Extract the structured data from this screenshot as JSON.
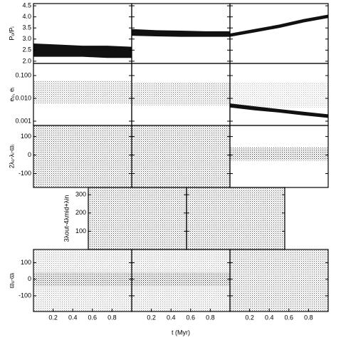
{
  "chart_data": [
    {
      "type": "band",
      "ylabel": "Pₒ/Pᵢ",
      "xlim": [
        0,
        1
      ],
      "ylim": [
        1.9,
        4.6
      ],
      "yticks": [
        {
          "value": 2,
          "label": "2.0"
        },
        2.5,
        {
          "value": 3,
          "label": "3.0"
        },
        3.5,
        {
          "value": 4,
          "label": "4.0"
        },
        4.5
      ],
      "show_ytick_labels": true,
      "series": [
        {
          "color": "#111",
          "style": "solid",
          "x": [
            0,
            0.25,
            0.5,
            0.75,
            1
          ],
          "lower": [
            2.2,
            2.2,
            2.2,
            2.15,
            2.15
          ],
          "upper": [
            2.8,
            2.75,
            2.7,
            2.7,
            2.65
          ]
        }
      ]
    },
    {
      "type": "band",
      "xlim": [
        0,
        1
      ],
      "ylim": [
        1.9,
        4.6
      ],
      "yticks": [
        {
          "value": 2,
          "label": "2.0"
        },
        2.5,
        {
          "value": 3,
          "label": "3.0"
        },
        3.5,
        {
          "value": 4,
          "label": "4.0"
        },
        4.5
      ],
      "show_ytick_labels": false,
      "series": [
        {
          "color": "#111",
          "style": "solid",
          "x": [
            0,
            0.25,
            0.5,
            0.75,
            1
          ],
          "lower": [
            3.15,
            3.12,
            3.1,
            3.1,
            3.1
          ],
          "upper": [
            3.45,
            3.4,
            3.38,
            3.35,
            3.35
          ]
        }
      ]
    },
    {
      "type": "band",
      "xlim": [
        0,
        1
      ],
      "ylim": [
        1.9,
        4.6
      ],
      "yticks": [
        {
          "value": 2,
          "label": "2.0"
        },
        2.5,
        {
          "value": 3,
          "label": "3.0"
        },
        3.5,
        {
          "value": 4,
          "label": "4.0"
        },
        4.5
      ],
      "show_ytick_labels": false,
      "series": [
        {
          "color": "#111",
          "style": "solid",
          "x": [
            0,
            0.25,
            0.5,
            0.75,
            1
          ],
          "lower": [
            3.1,
            3.3,
            3.5,
            3.75,
            3.95
          ],
          "upper": [
            3.25,
            3.45,
            3.65,
            3.9,
            4.1
          ]
        }
      ]
    },
    {
      "type": "band",
      "ylabel": "eₒ, eᵢ",
      "yscale": "log",
      "xlim": [
        0,
        1
      ],
      "ylim": [
        0.00065,
        0.34
      ],
      "yticks": [
        0.001,
        {
          "value": 0.01,
          "label": "0.010"
        },
        {
          "value": 0.1,
          "label": "0.100"
        }
      ],
      "show_ytick_labels": true,
      "series": [
        {
          "color": "#777",
          "style": "dots",
          "x": [
            0,
            0.25,
            0.5,
            0.75,
            1
          ],
          "lower": [
            0.006,
            0.006,
            0.006,
            0.006,
            0.006
          ],
          "upper": [
            0.06,
            0.06,
            0.06,
            0.06,
            0.06
          ]
        }
      ]
    },
    {
      "type": "band",
      "yscale": "log",
      "xlim": [
        0,
        1
      ],
      "ylim": [
        0.00065,
        0.34
      ],
      "yticks": [
        0.001,
        {
          "value": 0.01,
          "label": "0.010"
        },
        {
          "value": 0.1,
          "label": "0.100"
        }
      ],
      "show_ytick_labels": false,
      "series": [
        {
          "color": "#777",
          "style": "dots",
          "x": [
            0,
            0.25,
            0.5,
            0.75,
            1
          ],
          "lower": [
            0.005,
            0.005,
            0.005,
            0.005,
            0.005
          ],
          "upper": [
            0.05,
            0.05,
            0.05,
            0.05,
            0.05
          ]
        }
      ]
    },
    {
      "type": "band",
      "yscale": "log",
      "xlim": [
        0,
        1
      ],
      "ylim": [
        0.00065,
        0.34
      ],
      "yticks": [
        0.001,
        {
          "value": 0.01,
          "label": "0.010"
        },
        {
          "value": 0.1,
          "label": "0.100"
        }
      ],
      "show_ytick_labels": false,
      "series": [
        {
          "color": "#bbb",
          "style": "dots",
          "x": [
            0,
            0.25,
            0.5,
            0.75,
            1
          ],
          "lower": [
            0.004,
            0.004,
            0.004,
            0.004,
            0.004
          ],
          "upper": [
            0.05,
            0.05,
            0.05,
            0.05,
            0.05
          ]
        },
        {
          "color": "#111",
          "style": "solid",
          "x": [
            0,
            0.25,
            0.5,
            0.75,
            1
          ],
          "lower": [
            0.004,
            0.003,
            0.0024,
            0.0018,
            0.0014
          ],
          "upper": [
            0.006,
            0.0045,
            0.0034,
            0.0026,
            0.002
          ]
        }
      ]
    },
    {
      "type": "band",
      "ylabel": "2λₒ-λᵢ-ϖᵢ",
      "xlim": [
        0,
        1
      ],
      "ylim": [
        -175,
        160
      ],
      "yticks": [
        -100,
        0,
        100
      ],
      "show_ytick_labels": true,
      "series": [
        {
          "color": "#555",
          "style": "dots",
          "x": [
            0,
            0.5,
            1
          ],
          "lower": [
            -175,
            -175,
            -175
          ],
          "upper": [
            160,
            160,
            160
          ]
        }
      ]
    },
    {
      "type": "band",
      "xlim": [
        0,
        1
      ],
      "ylim": [
        -175,
        160
      ],
      "yticks": [
        -100,
        0,
        100
      ],
      "show_ytick_labels": false,
      "series": [
        {
          "color": "#555",
          "style": "dots",
          "x": [
            0,
            0.5,
            1
          ],
          "lower": [
            -175,
            -175,
            -175
          ],
          "upper": [
            160,
            160,
            160
          ]
        }
      ]
    },
    {
      "type": "band",
      "xlim": [
        0,
        1
      ],
      "ylim": [
        -175,
        160
      ],
      "yticks": [
        -100,
        0,
        100
      ],
      "show_ytick_labels": false,
      "series": [
        {
          "color": "#333",
          "style": "dots",
          "x": [
            0,
            0.5,
            1
          ],
          "lower": [
            -30,
            -30,
            -30
          ],
          "upper": [
            40,
            40,
            40
          ]
        }
      ]
    },
    {
      "type": "band",
      "ylabel": "3λout-4λmid+λin",
      "xlim": [
        0,
        1
      ],
      "ylim": [
        0,
        340
      ],
      "yticks": [
        100,
        200,
        300
      ],
      "show_ytick_labels": true,
      "series": [
        {
          "color": "#555",
          "style": "dots",
          "x": [
            0,
            0.5,
            1
          ],
          "lower": [
            0,
            0,
            0
          ],
          "upper": [
            340,
            340,
            340
          ]
        }
      ]
    },
    {
      "type": "band",
      "xlim": [
        0,
        1
      ],
      "ylim": [
        0,
        340
      ],
      "yticks": [
        100,
        200,
        300
      ],
      "show_ytick_labels": false,
      "series": [
        {
          "color": "#555",
          "style": "dots",
          "x": [
            0,
            0.5,
            1
          ],
          "lower": [
            0,
            0,
            0
          ],
          "upper": [
            340,
            340,
            340
          ]
        }
      ]
    },
    {
      "type": "band",
      "ylabel": "ϖₒ-ϖᵢ",
      "xlim": [
        0,
        1
      ],
      "ylim": [
        -195,
        180
      ],
      "yticks": [
        -100,
        0,
        100
      ],
      "show_ytick_labels": true,
      "xticks": [
        0.2,
        0.4,
        0.6,
        0.8
      ],
      "series": [
        {
          "color": "#999",
          "style": "dots",
          "x": [
            0,
            0.5,
            1
          ],
          "lower": [
            -195,
            -195,
            -195
          ],
          "upper": [
            180,
            180,
            180
          ]
        },
        {
          "color": "#222",
          "style": "dots",
          "x": [
            0,
            0.5,
            1
          ],
          "lower": [
            -40,
            -40,
            -40
          ],
          "upper": [
            40,
            40,
            40
          ]
        }
      ]
    },
    {
      "type": "band",
      "xlabel": "t (Myr)",
      "xlim": [
        0,
        1
      ],
      "ylim": [
        -195,
        180
      ],
      "yticks": [
        -100,
        0,
        100
      ],
      "show_ytick_labels": false,
      "xticks": [
        0.2,
        0.4,
        0.6,
        0.8
      ],
      "series": [
        {
          "color": "#999",
          "style": "dots",
          "x": [
            0,
            0.5,
            1
          ],
          "lower": [
            -195,
            -195,
            -195
          ],
          "upper": [
            180,
            180,
            180
          ]
        },
        {
          "color": "#222",
          "style": "dots",
          "x": [
            0,
            0.5,
            1
          ],
          "lower": [
            -40,
            -40,
            -40
          ],
          "upper": [
            40,
            40,
            40
          ]
        }
      ]
    },
    {
      "type": "band",
      "xlim": [
        0,
        1
      ],
      "ylim": [
        -195,
        180
      ],
      "yticks": [
        -100,
        0,
        100
      ],
      "show_ytick_labels": false,
      "xticks": [
        0.2,
        0.4,
        0.6,
        0.8
      ],
      "series": [
        {
          "color": "#666",
          "style": "dots",
          "x": [
            0,
            0.5,
            1
          ],
          "lower": [
            -195,
            -195,
            -195
          ],
          "upper": [
            180,
            180,
            180
          ]
        }
      ]
    }
  ]
}
